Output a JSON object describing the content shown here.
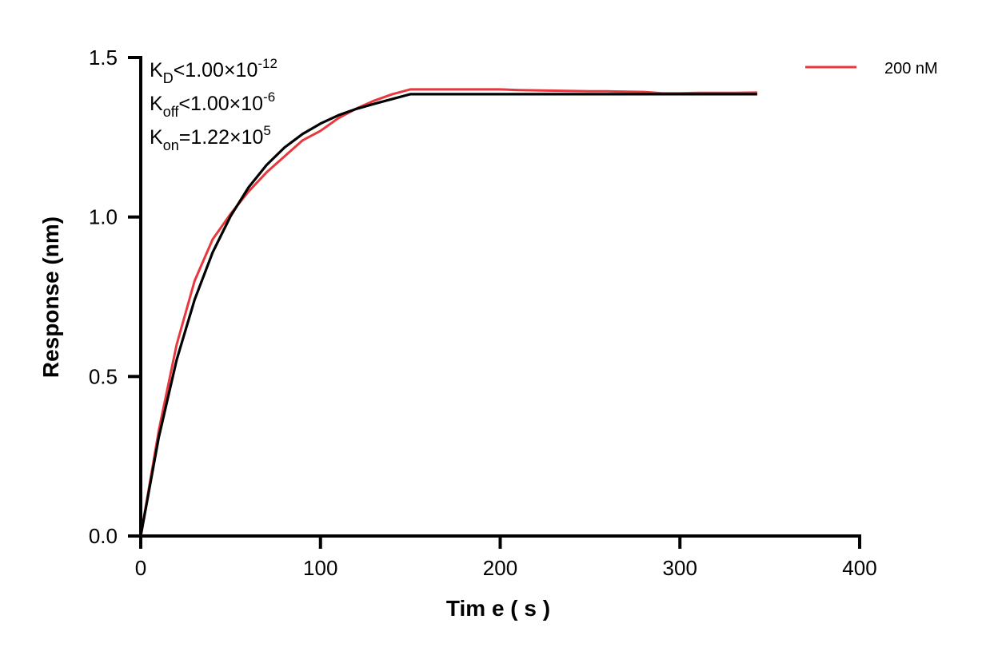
{
  "chart_data": {
    "type": "line",
    "xlabel": "Tim e ( s )",
    "ylabel": "Response (nm)",
    "xlim": [
      0,
      400
    ],
    "ylim": [
      0,
      1.5
    ],
    "xticks": [
      "0",
      "100",
      "200",
      "300",
      "400"
    ],
    "yticks": [
      "0.0",
      "0.5",
      "1.0",
      "1.5"
    ],
    "grid": false,
    "legend_position": "top-right",
    "annotations": {
      "kd": {
        "k": "K",
        "sub": "D",
        "rel": "<1.00×10",
        "sup": "-12"
      },
      "koff": {
        "k": "K",
        "sub": "off",
        "rel": "<1.00×10",
        "sup": "-6"
      },
      "kon": {
        "k": "K",
        "sub": "on",
        "rel": "=1.22×10",
        "sup": "5"
      }
    },
    "series": [
      {
        "name": "200 nM",
        "color": "#e8383d",
        "x": [
          0,
          10,
          20,
          30,
          40,
          50,
          60,
          70,
          80,
          90,
          100,
          110,
          120,
          130,
          140,
          150,
          160,
          170,
          180,
          190,
          200,
          210,
          220,
          230,
          240,
          250,
          260,
          270,
          280,
          290,
          300,
          310,
          320,
          330,
          343
        ],
        "y": [
          0,
          0.33,
          0.6,
          0.8,
          0.93,
          1.01,
          1.08,
          1.14,
          1.19,
          1.24,
          1.27,
          1.31,
          1.34,
          1.365,
          1.385,
          1.4,
          1.4,
          1.4,
          1.4,
          1.4,
          1.4,
          1.398,
          1.397,
          1.396,
          1.395,
          1.394,
          1.394,
          1.393,
          1.392,
          1.388,
          1.388,
          1.389,
          1.389,
          1.389,
          1.39
        ]
      },
      {
        "color": "#000000",
        "x": [
          0,
          10,
          20,
          30,
          40,
          50,
          60,
          70,
          80,
          90,
          100,
          110,
          120,
          130,
          140,
          150,
          343
        ],
        "y": [
          0,
          0.309,
          0.552,
          0.741,
          0.889,
          1.003,
          1.093,
          1.163,
          1.218,
          1.26,
          1.293,
          1.319,
          1.339,
          1.355,
          1.37,
          1.385,
          1.385
        ]
      }
    ]
  }
}
